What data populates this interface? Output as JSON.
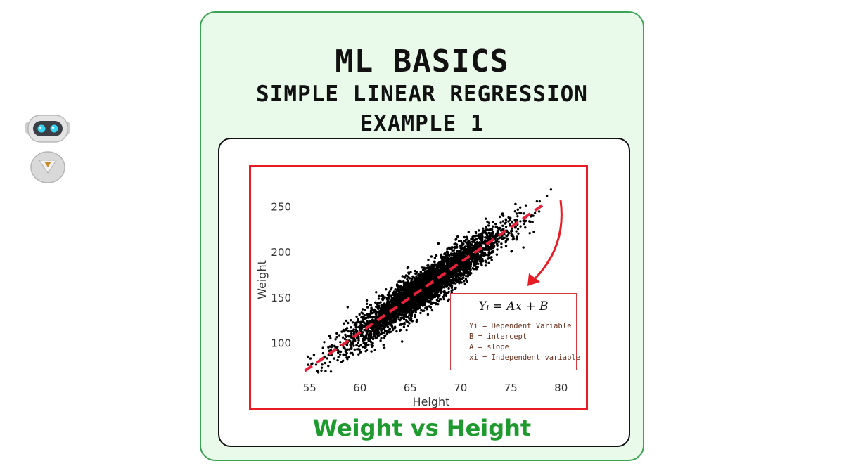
{
  "header": {
    "title": "ML BASICS",
    "subtitle": "SIMPLE LINEAR REGRESSION",
    "example": "EXAMPLE 1"
  },
  "caption": "Weight vs Height",
  "formula": {
    "equation": "Yᵢ = Ax + B",
    "legend": [
      "Yi = Dependent Variable",
      "B = intercept",
      "A = slope",
      "xi = Independent variable"
    ]
  },
  "colors": {
    "frame": "#e81c24",
    "regression_line": "#e8203a",
    "points": "#000000",
    "caption": "#1e9a2e",
    "card_border": "#3aa454",
    "card_bg": "#e9f9ea"
  },
  "chart_data": {
    "type": "scatter",
    "xlabel": "Height",
    "ylabel": "Weight",
    "xlim": [
      54,
      81
    ],
    "ylim": [
      65,
      275
    ],
    "xticks": [
      55,
      60,
      65,
      70,
      75,
      80
    ],
    "yticks": [
      100,
      150,
      200,
      250
    ],
    "grid": false,
    "points_cloud": {
      "description_free": true,
      "x_mean": 66.4,
      "x_sd": 3.85,
      "slope": 7.7,
      "intercept": -350,
      "residual_sd": 10.5,
      "count": 10000
    },
    "regression_line": {
      "x": [
        54.5,
        78.5
      ],
      "y": [
        69.7,
        254.5
      ],
      "style": "dashed"
    },
    "outliers": [
      {
        "x": 79.0,
        "y": 269
      },
      {
        "x": 78.6,
        "y": 262
      },
      {
        "x": 77.6,
        "y": 256
      }
    ]
  }
}
